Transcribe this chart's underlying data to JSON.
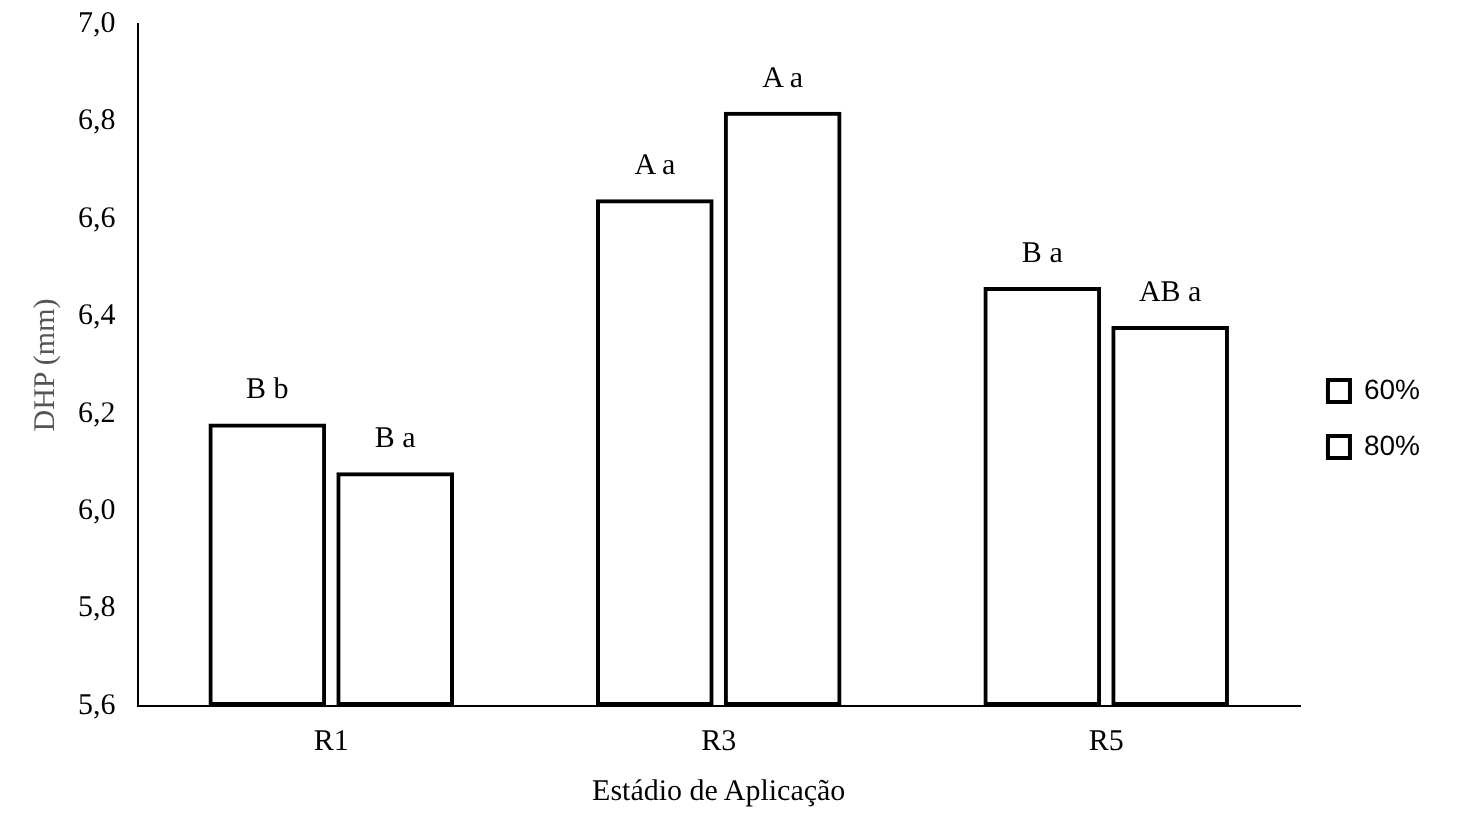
{
  "chart_data": {
    "type": "bar",
    "xlabel": "Estádio de Aplicação",
    "ylabel": "DHP (mm)",
    "categories": [
      "R1",
      "R3",
      "R5"
    ],
    "series": [
      {
        "name": "60%",
        "color": "#000000",
        "values": [
          6.18,
          6.64,
          6.46
        ],
        "value_labels": [
          "B b",
          "A a",
          "B a"
        ]
      },
      {
        "name": "80%",
        "color": "#000000",
        "values": [
          6.08,
          6.82,
          6.38
        ],
        "value_labels": [
          "B a",
          "A a",
          "AB a"
        ]
      }
    ],
    "ylim": [
      5.6,
      7.0
    ],
    "yticks": [
      {
        "value": 5.6,
        "label": "5,6"
      },
      {
        "value": 5.8,
        "label": "5,8"
      },
      {
        "value": 6.0,
        "label": "6,0"
      },
      {
        "value": 6.2,
        "label": "6,2"
      },
      {
        "value": 6.4,
        "label": "6,4"
      },
      {
        "value": 6.6,
        "label": "6,6"
      },
      {
        "value": 6.8,
        "label": "6,8"
      },
      {
        "value": 7.0,
        "label": "7,0"
      }
    ],
    "grid": false,
    "legend": "right"
  }
}
